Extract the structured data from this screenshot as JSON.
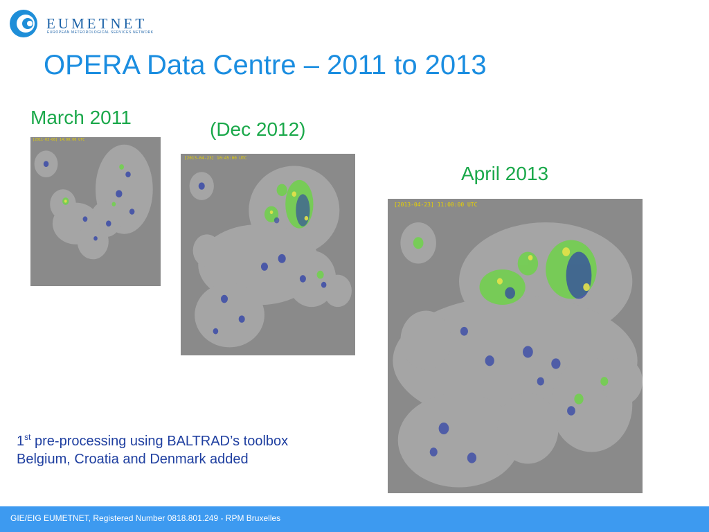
{
  "header": {
    "logo_name": "EUMETNET",
    "logo_tagline": "EUROPEAN METEOROLOGICAL SERVICES NETWORK",
    "title": "OPERA Data Centre – 2011 to 2013"
  },
  "panels": [
    {
      "label": "March 2011",
      "timestamp": "[2011-03-08] 14:00:00 UTC"
    },
    {
      "label": "(Dec 2012)",
      "timestamp": "[2013-04-23] 10:45:00 UTC"
    },
    {
      "label": "April 2013",
      "timestamp": "[2013-04-23] 11:00:00 UTC"
    }
  ],
  "note": {
    "line1_num": "1",
    "line1_sup": "st",
    "line1_rest": " pre-processing using BALTRAD’s toolbox",
    "line2": "Belgium, Croatia and Denmark added"
  },
  "footer": {
    "text": "GIE/EIG EUMETNET, Registered Number 0818.801.249 - RPM Bruxelles"
  },
  "colors": {
    "title": "#1a8de0",
    "labels": "#1aa84a",
    "note": "#1f3fa0",
    "footer_bg": "#3d9af0",
    "map_bg": "#8a8a8a",
    "radar_coverage": "#a5a5a5",
    "timestamp": "#e8d200"
  },
  "icons": {
    "logo": "eumetnet-swirl-logo"
  }
}
